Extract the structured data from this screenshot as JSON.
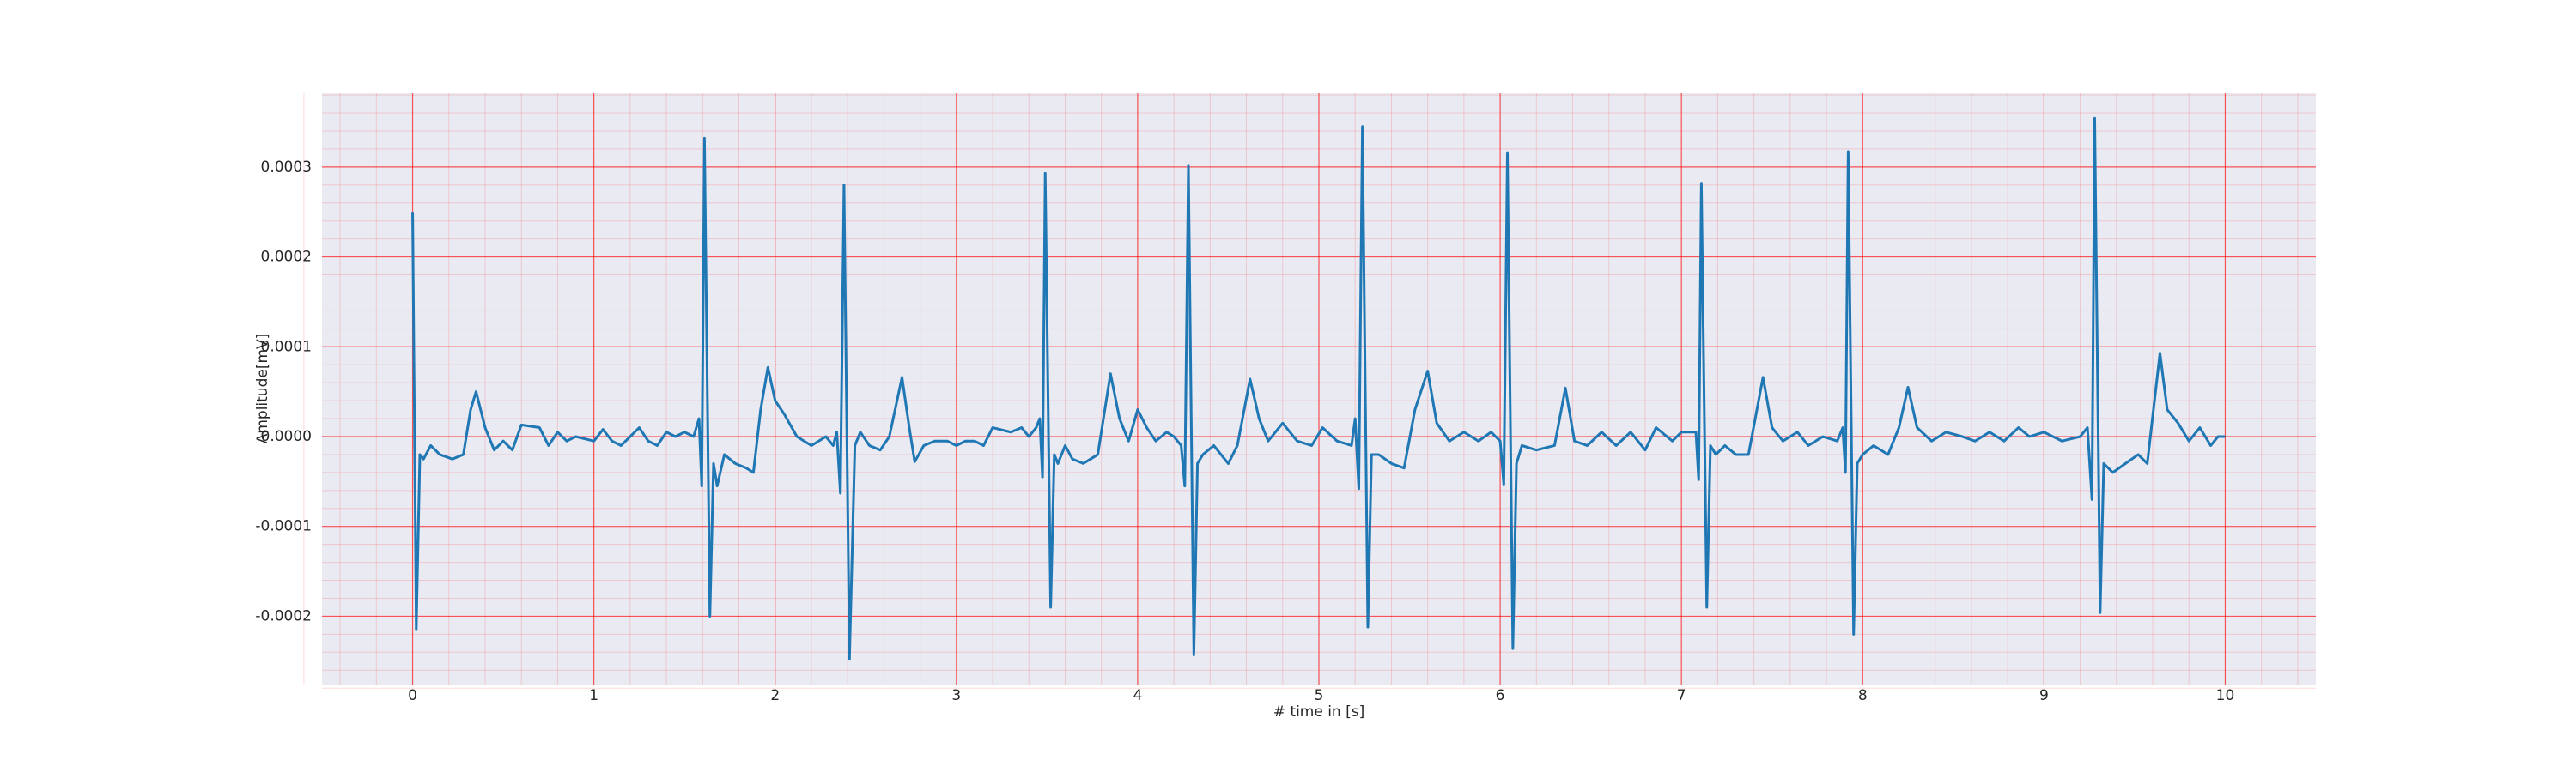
{
  "chart_data": {
    "type": "line",
    "xlabel": "# time in [s]",
    "ylabel": "Amplitude[mV]",
    "xlim": [
      -0.5,
      10.5
    ],
    "ylim": [
      -0.000276,
      0.000382
    ],
    "xticks": [
      0,
      1,
      2,
      3,
      4,
      5,
      6,
      7,
      8,
      9,
      10
    ],
    "yticks": [
      {
        "value": -0.0002,
        "label": "-0.0002"
      },
      {
        "value": -0.0001,
        "label": "-0.0001"
      },
      {
        "value": 0,
        "label": "0.0000"
      },
      {
        "value": 0.0001,
        "label": "0.0001"
      },
      {
        "value": 0.0002,
        "label": "0.0002"
      },
      {
        "value": 0.0003,
        "label": "0.0003"
      }
    ],
    "grid": true,
    "grid_color": "#ff0000",
    "minor_grid": true,
    "background": "#eaeaf2",
    "x": [
      0,
      0.02,
      0.04,
      0.06,
      0.1,
      0.15,
      0.22,
      0.28,
      0.32,
      0.35,
      0.4,
      0.45,
      0.5,
      0.55,
      0.6,
      0.7,
      0.75,
      0.8,
      0.85,
      0.9,
      1.0,
      1.05,
      1.1,
      1.15,
      1.2,
      1.25,
      1.3,
      1.35,
      1.4,
      1.45,
      1.5,
      1.55,
      1.58,
      1.595,
      1.61,
      1.64,
      1.66,
      1.68,
      1.72,
      1.78,
      1.84,
      1.88,
      1.92,
      1.96,
      2.0,
      2.05,
      2.12,
      2.2,
      2.28,
      2.32,
      2.34,
      2.36,
      2.38,
      2.41,
      2.44,
      2.47,
      2.52,
      2.58,
      2.63,
      2.7,
      2.74,
      2.77,
      2.82,
      2.88,
      2.95,
      3.0,
      3.05,
      3.1,
      3.15,
      3.2,
      3.3,
      3.36,
      3.4,
      3.44,
      3.46,
      3.475,
      3.49,
      3.52,
      3.54,
      3.56,
      3.6,
      3.64,
      3.7,
      3.78,
      3.85,
      3.9,
      3.95,
      4.0,
      4.05,
      4.1,
      4.16,
      4.2,
      4.24,
      4.26,
      4.28,
      4.31,
      4.33,
      4.36,
      4.42,
      4.5,
      4.55,
      4.62,
      4.67,
      4.72,
      4.8,
      4.88,
      4.96,
      5.02,
      5.1,
      5.18,
      5.2,
      5.22,
      5.24,
      5.27,
      5.29,
      5.33,
      5.4,
      5.47,
      5.53,
      5.6,
      5.65,
      5.72,
      5.8,
      5.88,
      5.95,
      6.0,
      6.02,
      6.04,
      6.07,
      6.09,
      6.12,
      6.2,
      6.3,
      6.36,
      6.41,
      6.48,
      6.56,
      6.64,
      6.72,
      6.8,
      6.86,
      6.95,
      7.0,
      7.08,
      7.095,
      7.11,
      7.14,
      7.16,
      7.19,
      7.24,
      7.3,
      7.37,
      7.45,
      7.5,
      7.56,
      7.64,
      7.7,
      7.78,
      7.86,
      7.89,
      7.905,
      7.92,
      7.95,
      7.97,
      8.0,
      8.06,
      8.14,
      8.2,
      8.25,
      8.3,
      8.38,
      8.46,
      8.55,
      8.62,
      8.7,
      8.78,
      8.86,
      8.92,
      9.0,
      9.1,
      9.2,
      9.24,
      9.265,
      9.28,
      9.31,
      9.33,
      9.38,
      9.45,
      9.52,
      9.57,
      9.64,
      9.68,
      9.74,
      9.8,
      9.86,
      9.92,
      9.96,
      10.0
    ],
    "series": [
      {
        "color": "#1f77b4",
        "values": [
          0.00025,
          -0.000215,
          -2e-05,
          -2.5e-05,
          -1e-05,
          -2e-05,
          -2.5e-05,
          -2e-05,
          3e-05,
          5e-05,
          1e-05,
          -1.5e-05,
          -5e-06,
          -1.5e-05,
          1.3e-05,
          1e-05,
          -1e-05,
          5e-06,
          -5e-06,
          0,
          -5e-06,
          8e-06,
          -5e-06,
          -1e-05,
          0,
          1e-05,
          -5e-06,
          -1e-05,
          5e-06,
          0,
          5e-06,
          0,
          2e-05,
          -5.5e-05,
          0.000332,
          -0.0002,
          -3e-05,
          -5.5e-05,
          -2e-05,
          -3e-05,
          -3.5e-05,
          -4e-05,
          3e-05,
          7.7e-05,
          4e-05,
          2.5e-05,
          0,
          -1e-05,
          0,
          -1e-05,
          5e-06,
          -6.3e-05,
          0.00028,
          -0.000248,
          -1e-05,
          5e-06,
          -1e-05,
          -1.5e-05,
          0,
          6.6e-05,
          1e-05,
          -2.8e-05,
          -1e-05,
          -5e-06,
          -5e-06,
          -1e-05,
          -5e-06,
          -5e-06,
          -1e-05,
          1e-05,
          5e-06,
          1e-05,
          0,
          1e-05,
          2e-05,
          -4.5e-05,
          0.000293,
          -0.00019,
          -2e-05,
          -3e-05,
          -1e-05,
          -2.5e-05,
          -3e-05,
          -2e-05,
          7e-05,
          2e-05,
          -5e-06,
          3e-05,
          1e-05,
          -5e-06,
          5e-06,
          0,
          -1e-05,
          -5.5e-05,
          0.000302,
          -0.000243,
          -3e-05,
          -2e-05,
          -1e-05,
          -3e-05,
          -1e-05,
          6.4e-05,
          2e-05,
          -5e-06,
          1.5e-05,
          -5e-06,
          -1e-05,
          1e-05,
          -5e-06,
          -1e-05,
          2e-05,
          -5.8e-05,
          0.000345,
          -0.000212,
          -2e-05,
          -2e-05,
          -3e-05,
          -3.5e-05,
          3e-05,
          7.3e-05,
          1.5e-05,
          -5e-06,
          5e-06,
          -5e-06,
          5e-06,
          -5e-06,
          -5.3e-05,
          0.000316,
          -0.000236,
          -3e-05,
          -1e-05,
          -1.5e-05,
          -1e-05,
          5.4e-05,
          -5e-06,
          -1e-05,
          5e-06,
          -1e-05,
          5e-06,
          -1.5e-05,
          1e-05,
          -5e-06,
          5e-06,
          5e-06,
          -4.8e-05,
          0.000282,
          -0.00019,
          -1e-05,
          -2e-05,
          -1e-05,
          -2e-05,
          -2e-05,
          6.6e-05,
          1e-05,
          -5e-06,
          5e-06,
          -1e-05,
          0,
          -5e-06,
          1e-05,
          -4e-05,
          0.000317,
          -0.00022,
          -3e-05,
          -2e-05,
          -1e-05,
          -2e-05,
          1e-05,
          5.5e-05,
          1e-05,
          -5e-06,
          5e-06,
          0,
          -5e-06,
          5e-06,
          -5e-06,
          1e-05,
          0,
          5e-06,
          -5e-06,
          0,
          1e-05,
          -7e-05,
          0.000355,
          -0.000196,
          -3e-05,
          -4e-05,
          -3e-05,
          -2e-05,
          -3e-05,
          9.3e-05,
          3e-05,
          1.5e-05,
          -5e-06,
          1e-05,
          -1e-05,
          0,
          0
        ]
      }
    ]
  }
}
